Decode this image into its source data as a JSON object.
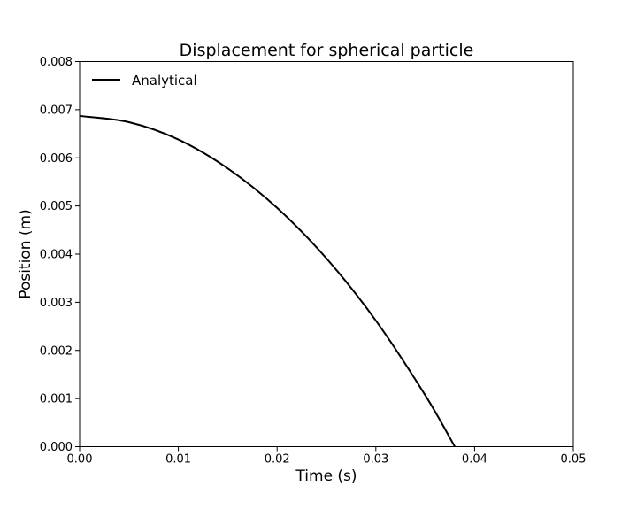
{
  "chart_data": {
    "type": "line",
    "title": "Displacement for spherical particle",
    "xlabel": "Time (s)",
    "ylabel": "Position (m)",
    "xlim": [
      0,
      0.05
    ],
    "ylim": [
      0,
      0.008
    ],
    "x_ticks": [
      "0.00",
      "0.01",
      "0.02",
      "0.03",
      "0.04",
      "0.05"
    ],
    "y_ticks": [
      "0.000",
      "0.001",
      "0.002",
      "0.003",
      "0.004",
      "0.005",
      "0.006",
      "0.007",
      "0.008"
    ],
    "grid": false,
    "legend_position": "top-left",
    "series": [
      {
        "name": "Analytical",
        "color": "#000000",
        "x": [
          0.0,
          0.005,
          0.01,
          0.015,
          0.02,
          0.025,
          0.03,
          0.035,
          0.038
        ],
        "y": [
          0.00687,
          0.00674,
          0.00638,
          0.00578,
          0.00496,
          0.00391,
          0.00262,
          0.00107,
          0.0
        ]
      }
    ]
  }
}
